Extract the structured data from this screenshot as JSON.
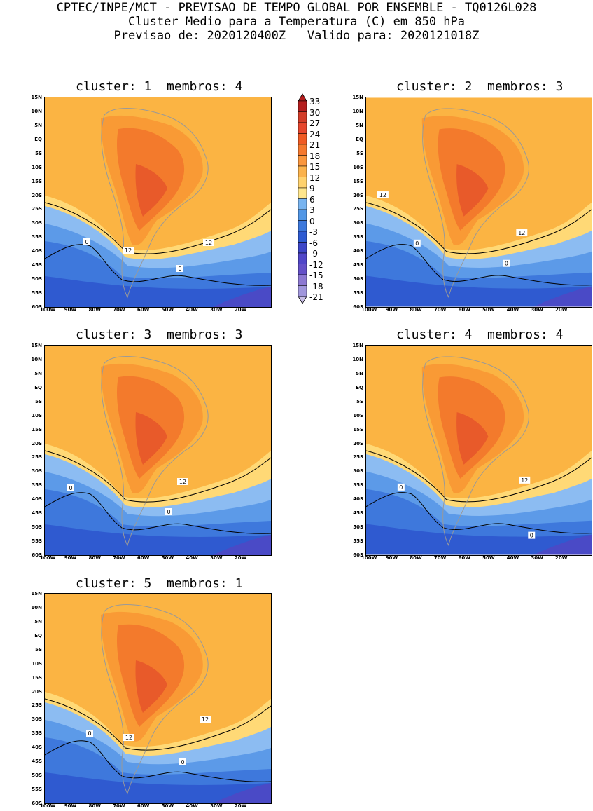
{
  "header": {
    "line1": "CPTEC/INPE/MCT - PREVISAO DE TEMPO GLOBAL POR ENSEMBLE - TQ0126L028",
    "line2": "Cluster Medio para a Temperatura (C) em 850 hPa",
    "line3": "Previsao de: 2020120400Z   Valido para: 2020121018Z"
  },
  "panels": [
    {
      "title": "cluster: 1  membros: 4"
    },
    {
      "title": "cluster: 2  membros: 3"
    },
    {
      "title": "cluster: 3  membros: 3"
    },
    {
      "title": "cluster: 4  membros: 4"
    },
    {
      "title": "cluster: 5  membros: 1"
    }
  ],
  "axes": {
    "lat_labels": [
      "15N",
      "10N",
      "5N",
      "EQ",
      "5S",
      "10S",
      "15S",
      "20S",
      "25S",
      "30S",
      "35S",
      "40S",
      "45S",
      "50S",
      "55S",
      "60S"
    ],
    "lon_labels": [
      "100W",
      "90W",
      "80W",
      "70W",
      "60W",
      "50W",
      "40W",
      "30W",
      "20W"
    ]
  },
  "colorbar": {
    "labels": [
      "33",
      "30",
      "27",
      "24",
      "21",
      "18",
      "15",
      "12",
      "9",
      "6",
      "3",
      "0",
      "-3",
      "-6",
      "-9",
      "-12",
      "-15",
      "-18",
      "-21"
    ],
    "colors": [
      "#b41e1e",
      "#d23c28",
      "#e6462d",
      "#f05a23",
      "#f5782d",
      "#fa963c",
      "#fbb24b",
      "#ffd26e",
      "#ffe68c",
      "#78b4f0",
      "#5096e6",
      "#3c78dc",
      "#2d5ad2",
      "#3c46c8",
      "#5046c8",
      "#6450c8",
      "#8c78d2",
      "#a096dc",
      "#c8bee6"
    ]
  },
  "contour_labels": {
    "c1": [
      "0",
      "12",
      "12",
      "0"
    ],
    "c2": [
      "12",
      "0",
      "12",
      "0"
    ],
    "c3": [
      "0",
      "12",
      "0"
    ],
    "c4": [
      "0",
      "12",
      "0"
    ],
    "c5": [
      "0",
      "12",
      "12",
      "0"
    ]
  }
}
